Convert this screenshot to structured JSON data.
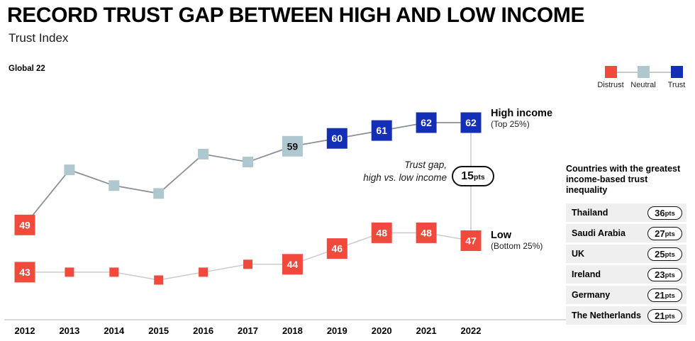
{
  "header": {
    "title": "RECORD TRUST GAP BETWEEN HIGH AND LOW INCOME",
    "subtitle": "Trust Index"
  },
  "chart_label": "Global 22",
  "colors": {
    "distrust": "#F2493D",
    "neutral": "#AFC7CF",
    "trust": "#132FB5",
    "line_high": "#8A9097",
    "line_low": "#CBCBCB",
    "axis": "#D9D9D9",
    "connector": "#C9C9C9",
    "row_bg": "#EFEFEF"
  },
  "legend": {
    "items": [
      {
        "label": "Distrust",
        "color_key": "distrust"
      },
      {
        "label": "Neutral",
        "color_key": "neutral"
      },
      {
        "label": "Trust",
        "color_key": "trust"
      }
    ]
  },
  "chart_data": {
    "type": "line",
    "title": "Trust Index",
    "xlabel": "",
    "ylabel": "Trust Index",
    "x": [
      2012,
      2013,
      2014,
      2015,
      2016,
      2017,
      2018,
      2019,
      2020,
      2021,
      2022
    ],
    "ylim": [
      40,
      66
    ],
    "grid": false,
    "legend_position": "top-right",
    "series": [
      {
        "name": "High income",
        "sublabel": "(Top 25%)",
        "values": [
          49,
          56,
          54,
          53,
          58,
          57,
          59,
          60,
          61,
          62,
          62
        ],
        "point_colors": [
          "distrust",
          "neutral",
          "neutral",
          "neutral",
          "neutral",
          "neutral",
          "neutral",
          "trust",
          "trust",
          "trust",
          "trust"
        ],
        "labeled_points": [
          2012,
          2018,
          2019,
          2020,
          2021,
          2022
        ],
        "line_color_key": "line_high"
      },
      {
        "name": "Low",
        "sublabel": "(Bottom 25%)",
        "values": [
          43,
          43,
          43,
          42,
          43,
          44,
          44,
          46,
          48,
          48,
          47
        ],
        "point_colors": [
          "distrust",
          "distrust",
          "distrust",
          "distrust",
          "distrust",
          "distrust",
          "distrust",
          "distrust",
          "distrust",
          "distrust",
          "distrust"
        ],
        "labeled_points": [
          2012,
          2018,
          2019,
          2020,
          2021,
          2022
        ],
        "line_color_key": "line_low"
      }
    ],
    "annotation": {
      "line1": "Trust gap,",
      "line2": "high vs. low income",
      "value": "15",
      "unit": "pts",
      "at_year": 2022
    }
  },
  "panel": {
    "title_line1": "Countries with the greatest",
    "title_line2": "income-based trust inequality",
    "rows": [
      {
        "country": "Thailand",
        "value": "36",
        "unit": "pts"
      },
      {
        "country": "Saudi Arabia",
        "value": "27",
        "unit": "pts"
      },
      {
        "country": "UK",
        "value": "25",
        "unit": "pts"
      },
      {
        "country": "Ireland",
        "value": "23",
        "unit": "pts"
      },
      {
        "country": "Germany",
        "value": "21",
        "unit": "pts"
      },
      {
        "country": "The Netherlands",
        "value": "21",
        "unit": "pts"
      }
    ]
  }
}
